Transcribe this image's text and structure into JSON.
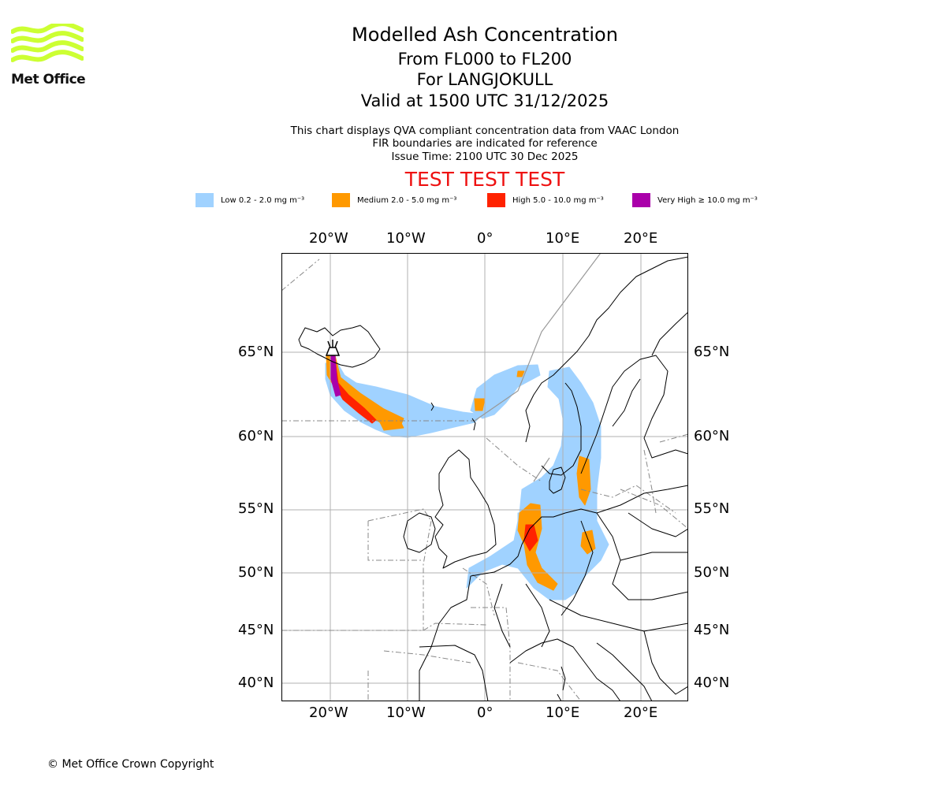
{
  "logo": {
    "text": "Met Office",
    "color": "#ccff33"
  },
  "header": {
    "title": "Modelled Ash Concentration",
    "levels": "From FL000 to FL200",
    "volcano": "For LANGJOKULL",
    "valid": "Valid at 1500 UTC 31/12/2025"
  },
  "notes": {
    "line1": "This chart displays QVA compliant concentration data from VAAC London",
    "line2": "FIR boundaries are indicated for reference",
    "line3": "Issue Time: 2100 UTC 30 Dec 2025"
  },
  "test_banner": "TEST TEST TEST",
  "legend": [
    {
      "label": "Low 0.2 - 2.0 mg m⁻³",
      "color": "#a0d2ff"
    },
    {
      "label": "Medium 2.0 - 5.0 mg m⁻³",
      "color": "#ff9900"
    },
    {
      "label": "High 5.0 - 10.0 mg m⁻³",
      "color": "#ff2200"
    },
    {
      "label": "Very High  ≥  10.0 mg m⁻³",
      "color": "#aa00aa"
    }
  ],
  "axes": {
    "lon_ticks": [
      "20°W",
      "10°W",
      "0°",
      "10°E",
      "20°E"
    ],
    "lat_ticks": [
      "65°N",
      "60°N",
      "55°N",
      "50°N",
      "45°N",
      "40°N"
    ]
  },
  "footer": {
    "copyright": "© Met Office Crown Copyright"
  }
}
